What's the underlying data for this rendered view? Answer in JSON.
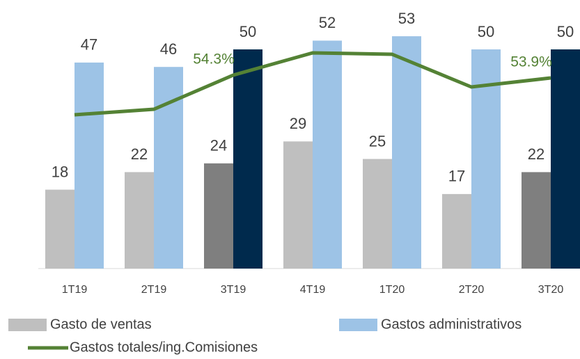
{
  "chart_data": {
    "type": "bar",
    "categories": [
      "1T19",
      "2T19",
      "3T19",
      "4T19",
      "1T20",
      "2T20",
      "3T20"
    ],
    "series": [
      {
        "name": "Gasto de ventas",
        "color": "#bfbfbf",
        "colors": [
          "#bfbfbf",
          "#bfbfbf",
          "#7f7f7f",
          "#bfbfbf",
          "#bfbfbf",
          "#bfbfbf",
          "#7f7f7f"
        ],
        "values": [
          18,
          22,
          24,
          29,
          25,
          17,
          22
        ]
      },
      {
        "name": "Gastos administrativos",
        "color": "#9dc3e6",
        "colors": [
          "#9dc3e6",
          "#9dc3e6",
          "#002a4d",
          "#9dc3e6",
          "#9dc3e6",
          "#9dc3e6",
          "#002a4d"
        ],
        "values": [
          47,
          46,
          50,
          52,
          53,
          50,
          50
        ]
      },
      {
        "name": "Gastos totales/ing.Comisiones",
        "type": "line",
        "axis": "y2",
        "color": "#548235",
        "values": [
          48.6,
          49.4,
          54.3,
          57.5,
          57.3,
          52.6,
          53.9
        ],
        "value_labels": [
          null,
          null,
          "54.3%",
          null,
          null,
          null,
          "53.9%"
        ]
      }
    ],
    "ylim": [
      0,
      60
    ],
    "y2lim": [
      26.5,
      64.3
    ],
    "legend": "bottom"
  }
}
